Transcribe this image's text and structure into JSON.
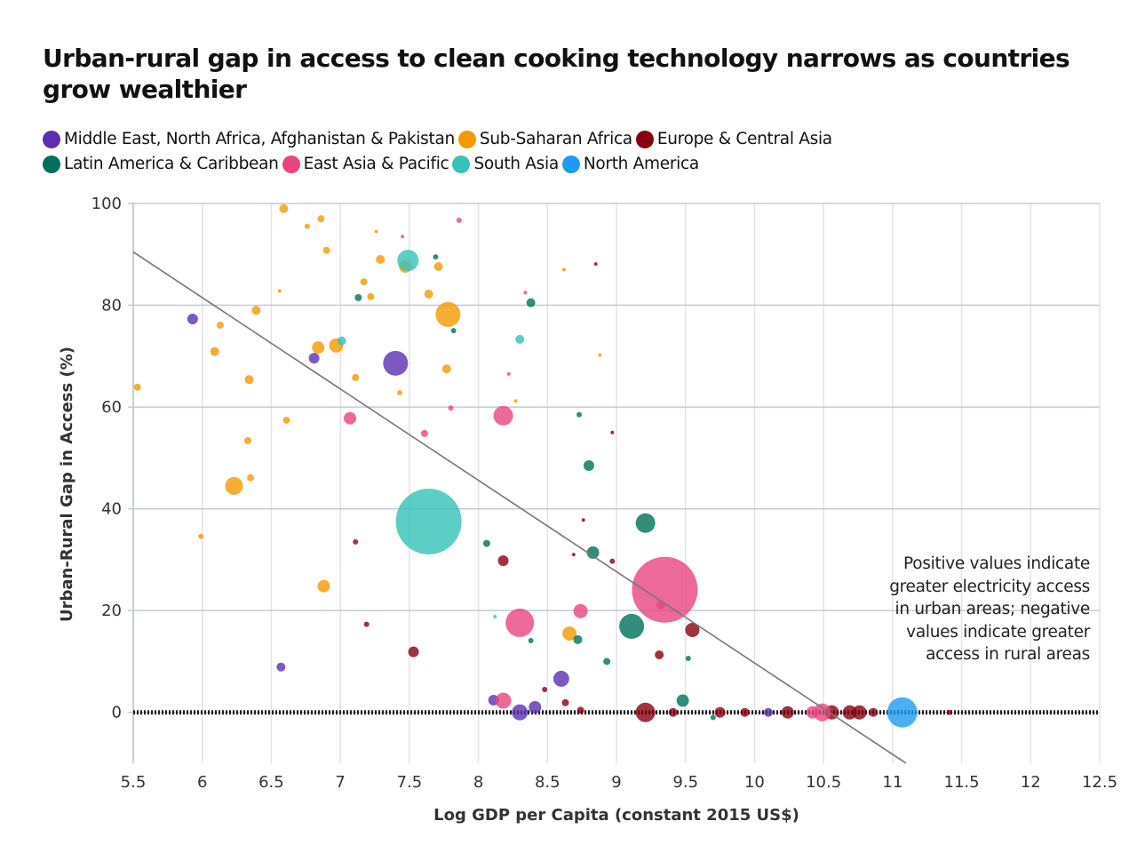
{
  "chart_data": {
    "type": "scatter",
    "title": "Urban-rural gap in access to clean cooking technology narrows as countries grow wealthier",
    "xlabel": "Log GDP per Capita (constant 2015 US$)",
    "ylabel": "Urban-Rural Gap in Access (%)",
    "xlim": [
      5.5,
      12.5
    ],
    "ylim": [
      -10,
      100
    ],
    "x_ticks": [
      "5.5",
      "6",
      "6.5",
      "7",
      "7.5",
      "8",
      "8.5",
      "9",
      "9.5",
      "10",
      "10.5",
      "11",
      "11.5",
      "12",
      "12.5"
    ],
    "y_ticks": [
      "0",
      "20",
      "40",
      "60",
      "80",
      "100"
    ],
    "grid": true,
    "legend_position": "top",
    "annotation": "Positive values indicate greater electricity access in urban areas; negative values indicate greater access in rural areas",
    "trendline": {
      "slope": -17.95,
      "intercept": 189.2
    },
    "series": [
      {
        "name": "Middle East, North Africa, Afghanistan & Pakistan",
        "color": "#5b2fb0",
        "points": [
          [
            5.93,
            77.3,
            36
          ],
          [
            6.81,
            69.6,
            36
          ],
          [
            7.4,
            68.6,
            196
          ],
          [
            6.57,
            8.9,
            25
          ],
          [
            8.11,
            2.4,
            36
          ],
          [
            8.3,
            0,
            81
          ],
          [
            8.41,
            1,
            49
          ],
          [
            8.6,
            6.6,
            81
          ],
          [
            10.1,
            0,
            25
          ]
        ]
      },
      {
        "name": "Sub-Saharan Africa",
        "color": "#f29a00",
        "points": [
          [
            6.59,
            99,
            25
          ],
          [
            6.86,
            97,
            16
          ],
          [
            6.76,
            95.5,
            9
          ],
          [
            6.9,
            90.8,
            16
          ],
          [
            7.29,
            89,
            25
          ],
          [
            7.47,
            87.6,
            49
          ],
          [
            7.71,
            87.6,
            25
          ],
          [
            7.17,
            84.6,
            16
          ],
          [
            7.22,
            81.7,
            16
          ],
          [
            7.64,
            82.2,
            25
          ],
          [
            7.78,
            78.2,
            196
          ],
          [
            6.39,
            79,
            25
          ],
          [
            6.13,
            76.1,
            16
          ],
          [
            6.84,
            71.7,
            49
          ],
          [
            6.97,
            72.1,
            64
          ],
          [
            6.09,
            70.9,
            25
          ],
          [
            7.77,
            67.5,
            25
          ],
          [
            7.11,
            65.8,
            16
          ],
          [
            6.34,
            65.4,
            25
          ],
          [
            5.53,
            63.9,
            16
          ],
          [
            6.61,
            57.4,
            16
          ],
          [
            6.33,
            53.4,
            16
          ],
          [
            6.35,
            46.1,
            16
          ],
          [
            6.23,
            44.5,
            100
          ],
          [
            5.99,
            34.6,
            9
          ],
          [
            6.88,
            24.8,
            49
          ],
          [
            8.66,
            15.5,
            64
          ],
          [
            7.43,
            62.8,
            9
          ],
          [
            6.56,
            82.8,
            4
          ],
          [
            7.26,
            94.5,
            4
          ],
          [
            8.62,
            87,
            4
          ],
          [
            8.88,
            70.2,
            4
          ],
          [
            8.27,
            61.2,
            4
          ]
        ]
      },
      {
        "name": "Europe & Central Asia",
        "color": "#8a0010",
        "points": [
          [
            8.85,
            88.1,
            4
          ],
          [
            7.11,
            33.5,
            9
          ],
          [
            8.18,
            29.8,
            36
          ],
          [
            7.19,
            17.3,
            9
          ],
          [
            7.53,
            11.9,
            36
          ],
          [
            8.97,
            29.7,
            9
          ],
          [
            8.69,
            31,
            4
          ],
          [
            9.55,
            16.2,
            64
          ],
          [
            9.31,
            11.3,
            25
          ],
          [
            8.63,
            1.9,
            16
          ],
          [
            9.21,
            0,
            121
          ],
          [
            9.41,
            0,
            25
          ],
          [
            9.75,
            0,
            36
          ],
          [
            9.93,
            0,
            25
          ],
          [
            10.24,
            0,
            49
          ],
          [
            10.56,
            0,
            64
          ],
          [
            10.69,
            0,
            64
          ],
          [
            10.76,
            0,
            64
          ],
          [
            10.86,
            0,
            25
          ],
          [
            11.41,
            0,
            9
          ],
          [
            8.74,
            0.4,
            16
          ],
          [
            8.48,
            4.5,
            9
          ],
          [
            8.76,
            37.8,
            4
          ],
          [
            8.97,
            55,
            4
          ]
        ]
      },
      {
        "name": "Latin America & Caribbean",
        "color": "#00705a",
        "points": [
          [
            7.69,
            89.5,
            9
          ],
          [
            7.13,
            81.5,
            16
          ],
          [
            8.38,
            80.5,
            25
          ],
          [
            7.82,
            75,
            9
          ],
          [
            8.73,
            58.5,
            9
          ],
          [
            8.8,
            48.5,
            36
          ],
          [
            9.21,
            37.2,
            121
          ],
          [
            8.83,
            31.4,
            49
          ],
          [
            8.06,
            33.2,
            16
          ],
          [
            9.11,
            16.9,
            196
          ],
          [
            8.72,
            14.3,
            25
          ],
          [
            8.93,
            10,
            16
          ],
          [
            8.38,
            14.1,
            9
          ],
          [
            9.48,
            2.3,
            49
          ],
          [
            9.52,
            10.6,
            9
          ],
          [
            9.7,
            -1,
            9
          ]
        ]
      },
      {
        "name": "East Asia & Pacific",
        "color": "#e8447f",
        "points": [
          [
            7.86,
            96.7,
            9
          ],
          [
            8.34,
            82.5,
            4
          ],
          [
            7.07,
            57.8,
            49
          ],
          [
            7.61,
            54.8,
            16
          ],
          [
            8.18,
            58.3,
            121
          ],
          [
            7.8,
            59.8,
            9
          ],
          [
            8.3,
            17.6,
            256
          ],
          [
            8.74,
            19.9,
            64
          ],
          [
            9.35,
            24.1,
            1369
          ],
          [
            9.32,
            21.1,
            25
          ],
          [
            8.18,
            2.3,
            81
          ],
          [
            10.49,
            0,
            100
          ],
          [
            10.42,
            0,
            49
          ],
          [
            7.45,
            93.5,
            4
          ],
          [
            8.22,
            66.5,
            4
          ]
        ]
      },
      {
        "name": "South Asia",
        "color": "#35c2b8",
        "points": [
          [
            7.49,
            88.8,
            144
          ],
          [
            7.01,
            73,
            25
          ],
          [
            8.3,
            73.3,
            25
          ],
          [
            7.64,
            37.5,
            1369
          ],
          [
            8.12,
            18.8,
            4
          ]
        ]
      },
      {
        "name": "North America",
        "color": "#1d9bf0",
        "points": [
          [
            11.07,
            0,
            289
          ]
        ]
      }
    ]
  }
}
